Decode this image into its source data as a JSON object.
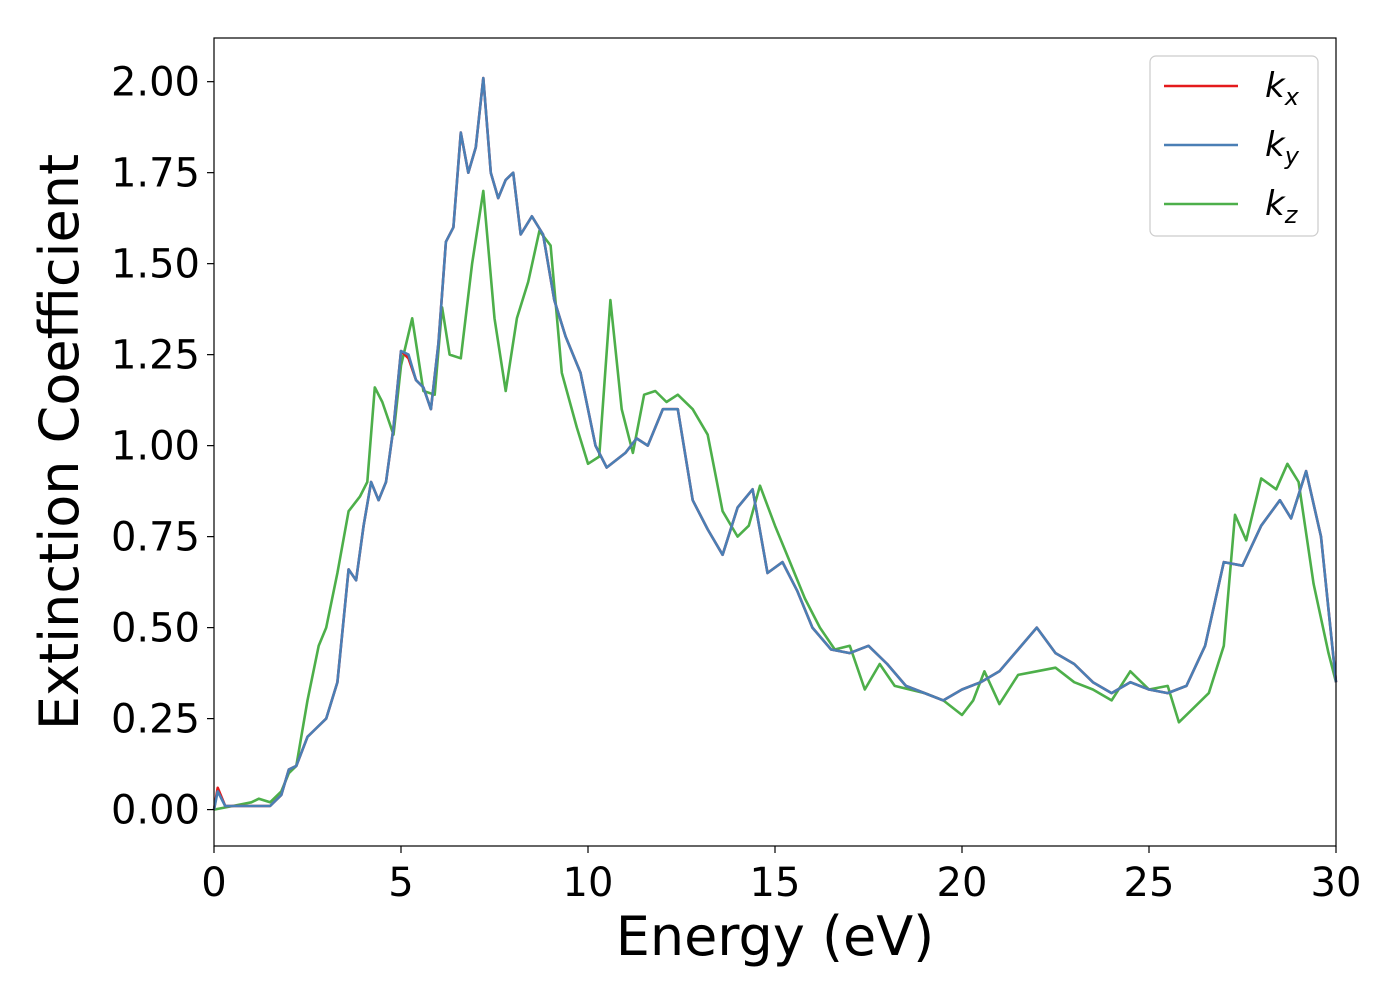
{
  "chart_data": {
    "type": "line",
    "title": "",
    "xlabel": "Energy (eV)",
    "ylabel": "Extinction Coefficient",
    "xlim": [
      0,
      30
    ],
    "ylim": [
      -0.1,
      2.12
    ],
    "xticks": [
      0,
      5,
      10,
      15,
      20,
      25,
      30
    ],
    "xtick_labels": [
      "0",
      "5",
      "10",
      "15",
      "20",
      "25",
      "30"
    ],
    "yticks": [
      0.0,
      0.25,
      0.5,
      0.75,
      1.0,
      1.25,
      1.5,
      1.75,
      2.0
    ],
    "ytick_labels": [
      "0.00",
      "0.25",
      "0.50",
      "0.75",
      "1.00",
      "1.25",
      "1.50",
      "1.75",
      "2.00"
    ],
    "grid": false,
    "legend_position": "top-right",
    "series": [
      {
        "name": "k_x",
        "label_main": "k",
        "label_sub": "x",
        "color": "#e41a1c",
        "x": [
          0,
          0.1,
          0.3,
          1.0,
          1.5,
          1.8,
          2.0,
          2.2,
          2.5,
          2.7,
          3.0,
          3.3,
          3.6,
          3.8,
          4.0,
          4.2,
          4.4,
          4.6,
          4.8,
          5.0,
          5.2,
          5.4,
          5.6,
          5.8,
          6.0,
          6.2,
          6.4,
          6.6,
          6.8,
          7.0,
          7.2,
          7.4,
          7.6,
          7.8,
          8.0,
          8.2,
          8.5,
          8.8,
          9.1,
          9.4,
          9.8,
          10.2,
          10.5,
          11.0,
          11.3,
          11.6,
          12.0,
          12.4,
          12.8,
          13.2,
          13.6,
          14.0,
          14.4,
          14.8,
          15.2,
          15.6,
          16.0,
          16.5,
          17.0,
          17.5,
          18.0,
          18.5,
          19.0,
          19.5,
          20.0,
          20.5,
          21.0,
          21.5,
          22.0,
          22.5,
          23.0,
          23.5,
          24.0,
          24.5,
          25.0,
          25.5,
          26.0,
          26.5,
          27.0,
          27.5,
          28.0,
          28.5,
          28.8,
          29.2,
          29.6,
          30.0
        ],
        "y": [
          0.0,
          0.06,
          0.01,
          0.01,
          0.01,
          0.04,
          0.11,
          0.12,
          0.2,
          0.22,
          0.25,
          0.35,
          0.66,
          0.63,
          0.78,
          0.9,
          0.85,
          0.9,
          1.05,
          1.26,
          1.24,
          1.18,
          1.16,
          1.1,
          1.28,
          1.56,
          1.6,
          1.86,
          1.75,
          1.82,
          2.01,
          1.75,
          1.68,
          1.73,
          1.75,
          1.58,
          1.63,
          1.58,
          1.4,
          1.3,
          1.2,
          1.0,
          0.94,
          0.98,
          1.02,
          1.0,
          1.1,
          1.1,
          0.85,
          0.77,
          0.7,
          0.83,
          0.88,
          0.65,
          0.68,
          0.6,
          0.5,
          0.44,
          0.43,
          0.45,
          0.4,
          0.34,
          0.32,
          0.3,
          0.33,
          0.35,
          0.38,
          0.44,
          0.5,
          0.43,
          0.4,
          0.35,
          0.32,
          0.35,
          0.33,
          0.32,
          0.34,
          0.45,
          0.68,
          0.67,
          0.78,
          0.85,
          0.8,
          0.93,
          0.75,
          0.35
        ]
      },
      {
        "name": "k_y",
        "label_main": "k",
        "label_sub": "y",
        "color": "#4a7fb5",
        "x": [
          0,
          0.1,
          0.3,
          1.0,
          1.5,
          1.8,
          2.0,
          2.2,
          2.5,
          2.7,
          3.0,
          3.3,
          3.6,
          3.8,
          4.0,
          4.2,
          4.4,
          4.6,
          4.8,
          5.0,
          5.2,
          5.4,
          5.6,
          5.8,
          6.0,
          6.2,
          6.4,
          6.6,
          6.8,
          7.0,
          7.2,
          7.4,
          7.6,
          7.8,
          8.0,
          8.2,
          8.5,
          8.8,
          9.1,
          9.4,
          9.8,
          10.2,
          10.5,
          11.0,
          11.3,
          11.6,
          12.0,
          12.4,
          12.8,
          13.2,
          13.6,
          14.0,
          14.4,
          14.8,
          15.2,
          15.6,
          16.0,
          16.5,
          17.0,
          17.5,
          18.0,
          18.5,
          19.0,
          19.5,
          20.0,
          20.5,
          21.0,
          21.5,
          22.0,
          22.5,
          23.0,
          23.5,
          24.0,
          24.5,
          25.0,
          25.5,
          26.0,
          26.5,
          27.0,
          27.5,
          28.0,
          28.5,
          28.8,
          29.2,
          29.6,
          30.0
        ],
        "y": [
          0.0,
          0.05,
          0.01,
          0.01,
          0.01,
          0.04,
          0.11,
          0.12,
          0.2,
          0.22,
          0.25,
          0.35,
          0.66,
          0.63,
          0.78,
          0.9,
          0.85,
          0.9,
          1.05,
          1.26,
          1.25,
          1.18,
          1.16,
          1.1,
          1.28,
          1.56,
          1.6,
          1.86,
          1.75,
          1.82,
          2.01,
          1.75,
          1.68,
          1.73,
          1.75,
          1.58,
          1.63,
          1.58,
          1.4,
          1.3,
          1.2,
          1.0,
          0.94,
          0.98,
          1.02,
          1.0,
          1.1,
          1.1,
          0.85,
          0.77,
          0.7,
          0.83,
          0.88,
          0.65,
          0.68,
          0.6,
          0.5,
          0.44,
          0.43,
          0.45,
          0.4,
          0.34,
          0.32,
          0.3,
          0.33,
          0.35,
          0.38,
          0.44,
          0.5,
          0.43,
          0.4,
          0.35,
          0.32,
          0.35,
          0.33,
          0.32,
          0.34,
          0.45,
          0.68,
          0.67,
          0.78,
          0.85,
          0.8,
          0.93,
          0.75,
          0.35
        ]
      },
      {
        "name": "k_z",
        "label_main": "k",
        "label_sub": "z",
        "color": "#4daf4a",
        "x": [
          0,
          0.5,
          1.0,
          1.2,
          1.5,
          1.8,
          2.0,
          2.2,
          2.5,
          2.8,
          3.0,
          3.3,
          3.6,
          3.9,
          4.1,
          4.3,
          4.5,
          4.8,
          5.0,
          5.3,
          5.6,
          5.9,
          6.1,
          6.3,
          6.6,
          6.9,
          7.2,
          7.5,
          7.8,
          8.1,
          8.4,
          8.7,
          9.0,
          9.3,
          9.7,
          10.0,
          10.3,
          10.6,
          10.9,
          11.2,
          11.5,
          11.8,
          12.1,
          12.4,
          12.8,
          13.2,
          13.6,
          14.0,
          14.3,
          14.6,
          15.0,
          15.4,
          15.8,
          16.2,
          16.6,
          17.0,
          17.4,
          17.8,
          18.2,
          18.6,
          19.0,
          19.5,
          20.0,
          20.3,
          20.6,
          21.0,
          21.5,
          22.0,
          22.5,
          23.0,
          23.5,
          24.0,
          24.5,
          25.0,
          25.5,
          25.8,
          26.2,
          26.6,
          27.0,
          27.3,
          27.6,
          28.0,
          28.4,
          28.7,
          29.0,
          29.4,
          29.8,
          30.0
        ],
        "y": [
          0.0,
          0.01,
          0.02,
          0.03,
          0.02,
          0.05,
          0.1,
          0.12,
          0.3,
          0.45,
          0.5,
          0.65,
          0.82,
          0.86,
          0.9,
          1.16,
          1.12,
          1.03,
          1.22,
          1.35,
          1.15,
          1.14,
          1.38,
          1.25,
          1.24,
          1.5,
          1.7,
          1.35,
          1.15,
          1.35,
          1.45,
          1.59,
          1.55,
          1.2,
          1.05,
          0.95,
          0.97,
          1.4,
          1.1,
          0.98,
          1.14,
          1.15,
          1.12,
          1.14,
          1.1,
          1.03,
          0.82,
          0.75,
          0.78,
          0.89,
          0.78,
          0.68,
          0.58,
          0.5,
          0.44,
          0.45,
          0.33,
          0.4,
          0.34,
          0.33,
          0.32,
          0.3,
          0.26,
          0.3,
          0.38,
          0.29,
          0.37,
          0.38,
          0.39,
          0.35,
          0.33,
          0.3,
          0.38,
          0.33,
          0.34,
          0.24,
          0.28,
          0.32,
          0.45,
          0.81,
          0.74,
          0.91,
          0.88,
          0.95,
          0.9,
          0.62,
          0.43,
          0.35
        ]
      }
    ]
  }
}
